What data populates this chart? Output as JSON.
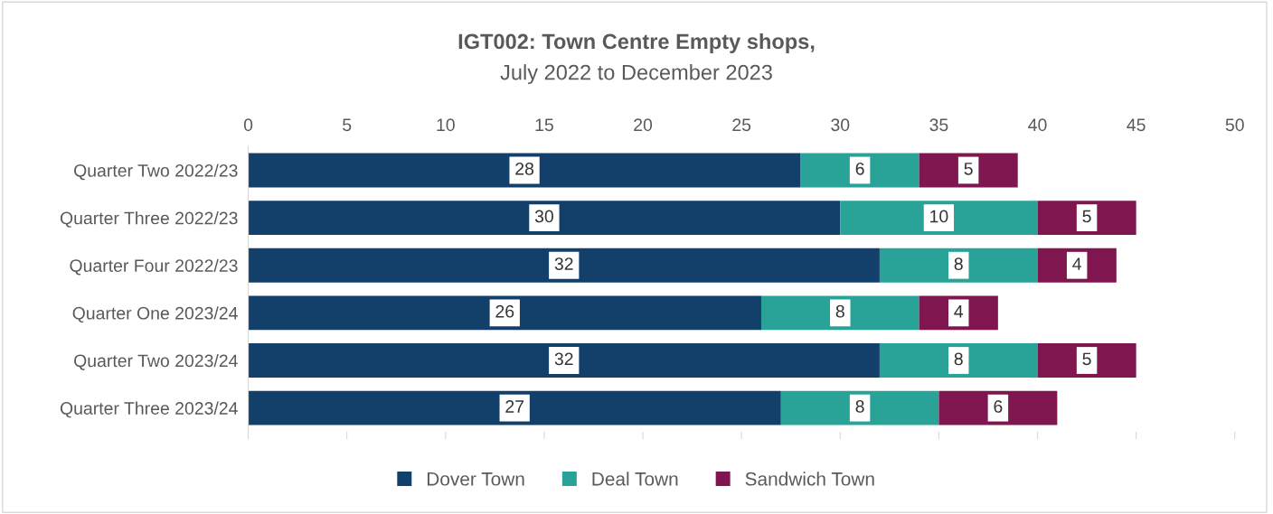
{
  "chart_data": {
    "type": "bar",
    "orientation": "horizontal",
    "stacked": true,
    "title": "IGT002: Town Centre Empty shops,",
    "subtitle": "July 2022 to December 2023",
    "categories": [
      "Quarter Two 2022/23",
      "Quarter Three 2022/23",
      "Quarter Four 2022/23",
      "Quarter One 2023/24",
      "Quarter Two 2023/24",
      "Quarter Three 2023/24"
    ],
    "series": [
      {
        "name": "Dover Town",
        "color": "#133f6b",
        "values": [
          28,
          30,
          32,
          26,
          32,
          27
        ]
      },
      {
        "name": "Deal Town",
        "color": "#29a398",
        "values": [
          6,
          10,
          8,
          8,
          8,
          8
        ]
      },
      {
        "name": "Sandwich Town",
        "color": "#7f1650",
        "values": [
          5,
          5,
          4,
          4,
          5,
          6
        ]
      }
    ],
    "xlim": [
      0,
      50
    ],
    "xticks": [
      0,
      5,
      10,
      15,
      20,
      25,
      30,
      35,
      40,
      45,
      50
    ],
    "data_labels": true,
    "legend": "bottom",
    "grid": false
  }
}
